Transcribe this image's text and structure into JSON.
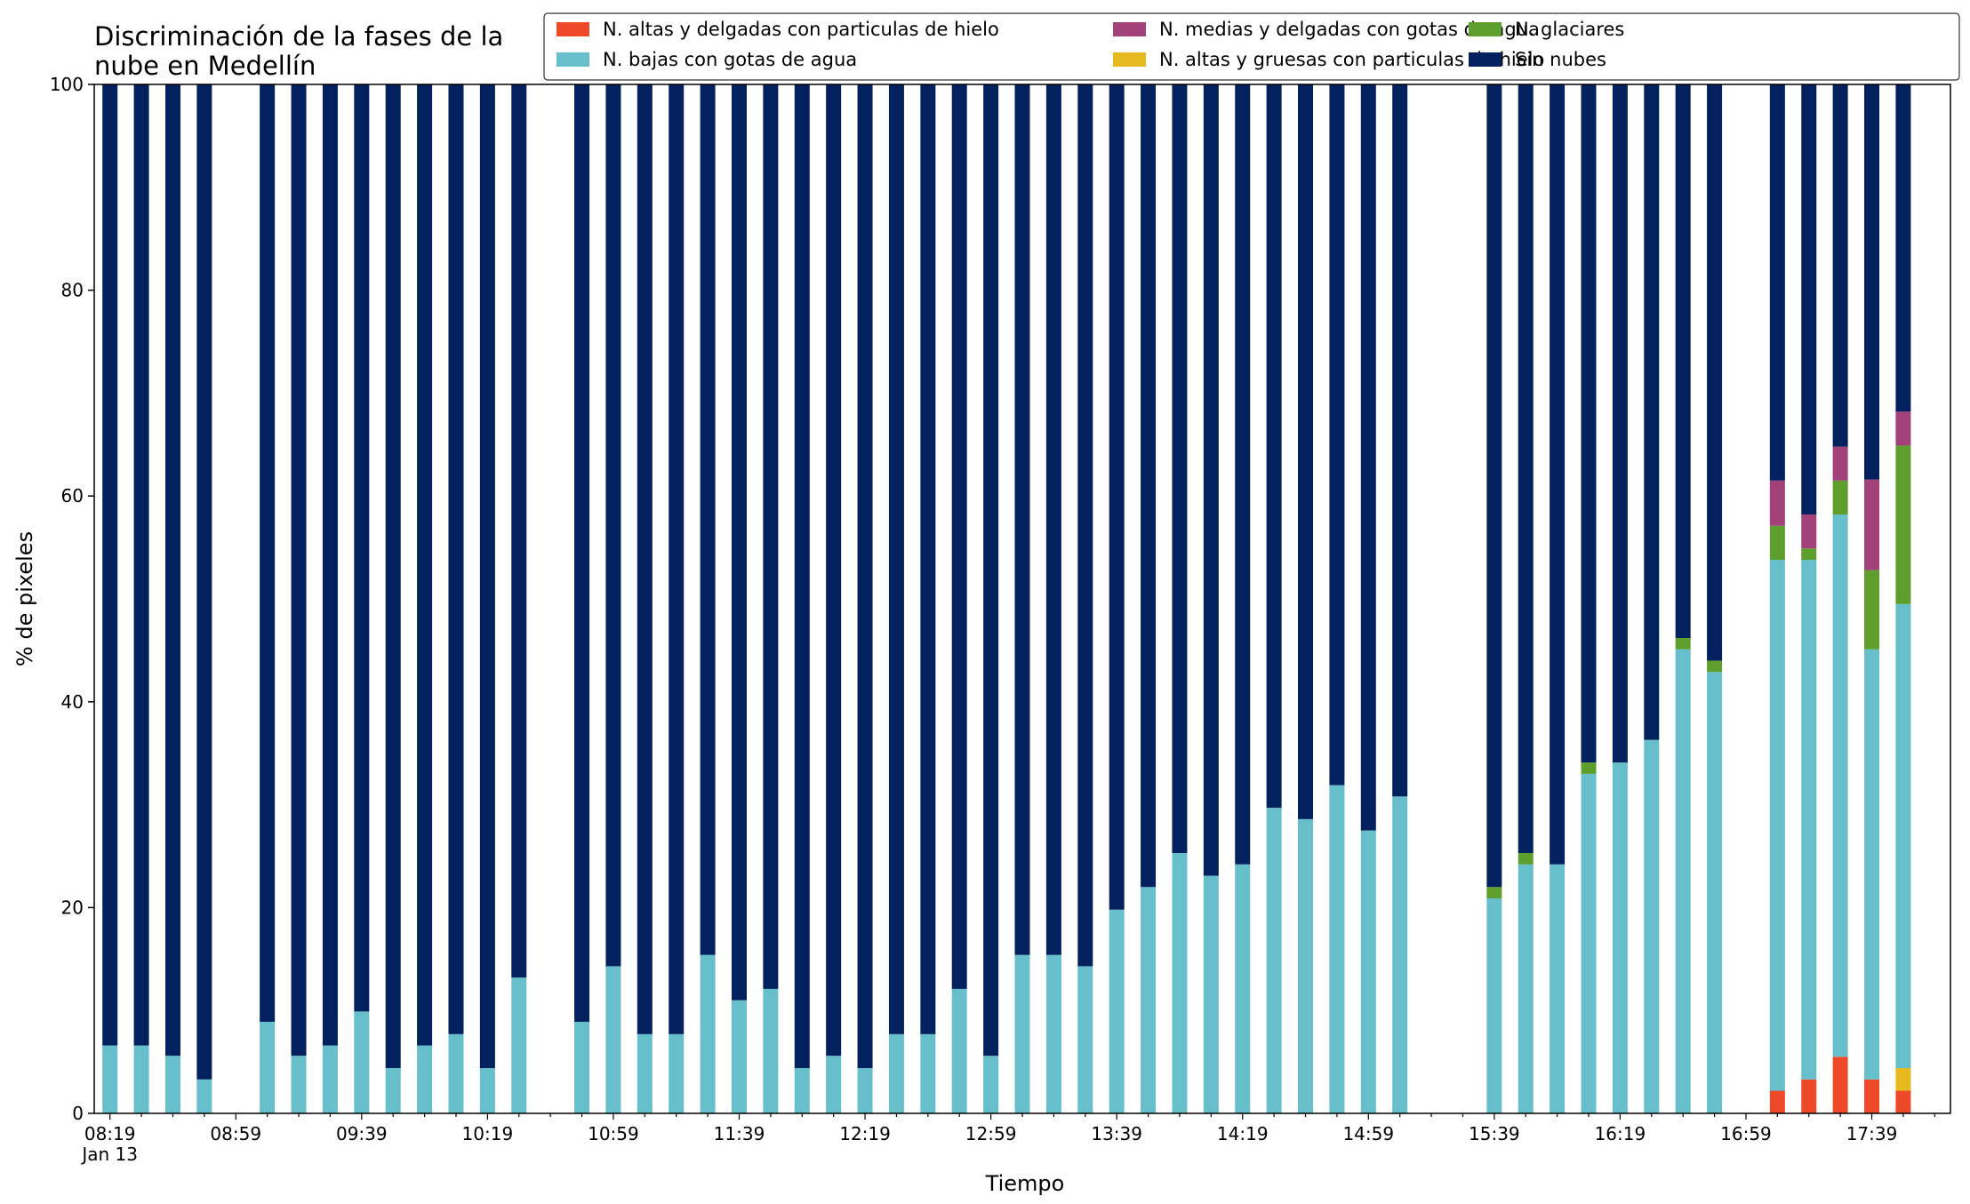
{
  "chart_data": {
    "type": "bar",
    "stacked": true,
    "title_lines": [
      "Discriminación de la fases de la",
      "nube en Medellín"
    ],
    "xlabel": "Tiempo",
    "ylabel": "% de pixeles",
    "ylim": [
      0,
      100
    ],
    "yticks": [
      "0",
      "20",
      "40",
      "60",
      "80",
      "100"
    ],
    "xlim_slots": [
      -0.5,
      58.5
    ],
    "x_start_time": "08:19",
    "x_step_minutes": 10,
    "x_tick_labels": [
      {
        "slot": 0,
        "label": "08:19",
        "sub": "Jan 13"
      },
      {
        "slot": 4,
        "label": "08:59"
      },
      {
        "slot": 8,
        "label": "09:39"
      },
      {
        "slot": 12,
        "label": "10:19"
      },
      {
        "slot": 16,
        "label": "10:59"
      },
      {
        "slot": 20,
        "label": "11:39"
      },
      {
        "slot": 24,
        "label": "12:19"
      },
      {
        "slot": 28,
        "label": "12:59"
      },
      {
        "slot": 32,
        "label": "13:39"
      },
      {
        "slot": 36,
        "label": "14:19"
      },
      {
        "slot": 40,
        "label": "14:59"
      },
      {
        "slot": 44,
        "label": "15:39"
      },
      {
        "slot": 48,
        "label": "16:19"
      },
      {
        "slot": 52,
        "label": "16:59"
      },
      {
        "slot": 56,
        "label": "17:39"
      }
    ],
    "legend": {
      "placement": "top-right",
      "columns": 3
    },
    "series": [
      {
        "name": "N. altas y delgadas con particulas de hielo",
        "color": "#ee4a2a"
      },
      {
        "name": "N. altas y gruesas con particulas de hielo",
        "color": "#e6b91e"
      },
      {
        "name": "N. bajas con gotas de agua",
        "color": "#66bfcb"
      },
      {
        "name": "N. glaciares",
        "color": "#5e9e2c"
      },
      {
        "name": "N. medias y delgadas con gotas de agua",
        "color": "#a3427a"
      },
      {
        "name": "Sin nubes",
        "color": "#03205f"
      }
    ],
    "legend_order": [
      0,
      2,
      4,
      1,
      3,
      5
    ],
    "bars": [
      {
        "slot": 0,
        "values": [
          0,
          0,
          6.6,
          0,
          0,
          93.4
        ]
      },
      {
        "slot": 1,
        "values": [
          0,
          0,
          6.6,
          0,
          0,
          93.4
        ]
      },
      {
        "slot": 2,
        "values": [
          0,
          0,
          5.6,
          0,
          0,
          94.4
        ]
      },
      {
        "slot": 3,
        "values": [
          0,
          0,
          3.3,
          0,
          0,
          96.7
        ]
      },
      {
        "slot": 5,
        "values": [
          0,
          0,
          8.9,
          0,
          0,
          91.1
        ]
      },
      {
        "slot": 6,
        "values": [
          0,
          0,
          5.6,
          0,
          0,
          94.4
        ]
      },
      {
        "slot": 7,
        "values": [
          0,
          0,
          6.6,
          0,
          0,
          93.4
        ]
      },
      {
        "slot": 8,
        "values": [
          0,
          0,
          9.9,
          0,
          0,
          90.1
        ]
      },
      {
        "slot": 9,
        "values": [
          0,
          0,
          4.4,
          0,
          0,
          95.6
        ]
      },
      {
        "slot": 10,
        "values": [
          0,
          0,
          6.6,
          0,
          0,
          93.4
        ]
      },
      {
        "slot": 11,
        "values": [
          0,
          0,
          7.7,
          0,
          0,
          92.3
        ]
      },
      {
        "slot": 12,
        "values": [
          0,
          0,
          4.4,
          0,
          0,
          95.6
        ]
      },
      {
        "slot": 13,
        "values": [
          0,
          0,
          13.2,
          0,
          0,
          86.8
        ]
      },
      {
        "slot": 15,
        "values": [
          0,
          0,
          8.9,
          0,
          0,
          91.1
        ]
      },
      {
        "slot": 16,
        "values": [
          0,
          0,
          14.3,
          0,
          0,
          85.7
        ]
      },
      {
        "slot": 17,
        "values": [
          0,
          0,
          7.7,
          0,
          0,
          92.3
        ]
      },
      {
        "slot": 18,
        "values": [
          0,
          0,
          7.7,
          0,
          0,
          92.3
        ]
      },
      {
        "slot": 19,
        "values": [
          0,
          0,
          15.4,
          0,
          0,
          84.6
        ]
      },
      {
        "slot": 20,
        "values": [
          0,
          0,
          11.0,
          0,
          0,
          89.0
        ]
      },
      {
        "slot": 21,
        "values": [
          0,
          0,
          12.1,
          0,
          0,
          87.9
        ]
      },
      {
        "slot": 22,
        "values": [
          0,
          0,
          4.4,
          0,
          0,
          95.6
        ]
      },
      {
        "slot": 23,
        "values": [
          0,
          0,
          5.6,
          0,
          0,
          94.4
        ]
      },
      {
        "slot": 24,
        "values": [
          0,
          0,
          4.4,
          0,
          0,
          95.6
        ]
      },
      {
        "slot": 25,
        "values": [
          0,
          0,
          7.7,
          0,
          0,
          92.3
        ]
      },
      {
        "slot": 26,
        "values": [
          0,
          0,
          7.7,
          0,
          0,
          92.3
        ]
      },
      {
        "slot": 27,
        "values": [
          0,
          0,
          12.1,
          0,
          0,
          87.9
        ]
      },
      {
        "slot": 28,
        "values": [
          0,
          0,
          5.6,
          0,
          0,
          94.4
        ]
      },
      {
        "slot": 29,
        "values": [
          0,
          0,
          15.4,
          0,
          0,
          84.6
        ]
      },
      {
        "slot": 30,
        "values": [
          0,
          0,
          15.4,
          0,
          0,
          84.6
        ]
      },
      {
        "slot": 31,
        "values": [
          0,
          0,
          14.3,
          0,
          0,
          85.7
        ]
      },
      {
        "slot": 32,
        "values": [
          0,
          0,
          19.8,
          0,
          0,
          80.2
        ]
      },
      {
        "slot": 33,
        "values": [
          0,
          0,
          22.0,
          0,
          0,
          78.0
        ]
      },
      {
        "slot": 34,
        "values": [
          0,
          0,
          25.3,
          0,
          0,
          74.7
        ]
      },
      {
        "slot": 35,
        "values": [
          0,
          0,
          23.1,
          0,
          0,
          76.9
        ]
      },
      {
        "slot": 36,
        "values": [
          0,
          0,
          24.2,
          0,
          0,
          75.8
        ]
      },
      {
        "slot": 37,
        "values": [
          0,
          0,
          29.7,
          0,
          0,
          70.3
        ]
      },
      {
        "slot": 38,
        "values": [
          0,
          0,
          28.6,
          0,
          0,
          71.4
        ]
      },
      {
        "slot": 39,
        "values": [
          0,
          0,
          31.9,
          0,
          0,
          68.1
        ]
      },
      {
        "slot": 40,
        "values": [
          0,
          0,
          27.5,
          0,
          0,
          72.5
        ]
      },
      {
        "slot": 41,
        "values": [
          0,
          0,
          30.8,
          0,
          0,
          69.2
        ]
      },
      {
        "slot": 44,
        "values": [
          0,
          0,
          20.9,
          1.1,
          0,
          78.0
        ]
      },
      {
        "slot": 45,
        "values": [
          0,
          0,
          24.2,
          1.1,
          0,
          74.7
        ]
      },
      {
        "slot": 46,
        "values": [
          0,
          0,
          24.2,
          0,
          0,
          75.8
        ]
      },
      {
        "slot": 47,
        "values": [
          0,
          0,
          33.0,
          1.1,
          0,
          65.9
        ]
      },
      {
        "slot": 48,
        "values": [
          0,
          0,
          34.1,
          0,
          0,
          65.9
        ]
      },
      {
        "slot": 49,
        "values": [
          0,
          0,
          36.3,
          0,
          0,
          63.7
        ]
      },
      {
        "slot": 50,
        "values": [
          0,
          0,
          45.1,
          1.1,
          0,
          53.8
        ]
      },
      {
        "slot": 51,
        "values": [
          0,
          0,
          42.9,
          1.1,
          0,
          56.0
        ]
      },
      {
        "slot": 53,
        "values": [
          2.2,
          0,
          51.6,
          3.3,
          4.4,
          38.5
        ]
      },
      {
        "slot": 54,
        "values": [
          3.3,
          0,
          50.5,
          1.1,
          3.3,
          41.8
        ]
      },
      {
        "slot": 55,
        "values": [
          5.5,
          0,
          52.7,
          3.3,
          3.3,
          35.2
        ]
      },
      {
        "slot": 56,
        "values": [
          3.3,
          0,
          41.8,
          7.7,
          8.8,
          38.4
        ]
      },
      {
        "slot": 57,
        "values": [
          2.2,
          2.2,
          45.1,
          15.4,
          3.3,
          31.8
        ]
      }
    ]
  }
}
